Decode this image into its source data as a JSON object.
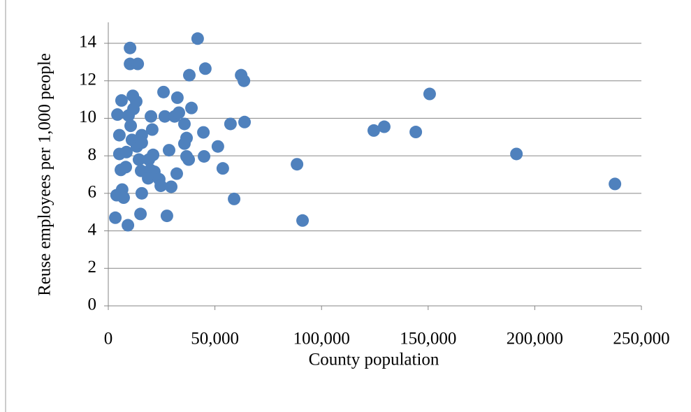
{
  "chart_data": {
    "type": "scatter",
    "x_label": "County population",
    "y_label": "Reuse employees per 1,000 people",
    "color": "#4f81bd",
    "grid": true,
    "xlim": [
      0,
      250000
    ],
    "xticks": [
      0,
      {
        "value": 50000,
        "label": "50,000"
      },
      {
        "value": 100000,
        "label": "100,000"
      },
      {
        "value": 150000,
        "label": "150,000"
      },
      {
        "value": 200000,
        "label": "200,000"
      },
      {
        "value": 250000,
        "label": "250,000"
      }
    ],
    "ylim": [
      0,
      14
    ],
    "yticks": [
      0,
      2,
      4,
      6,
      8,
      10,
      12,
      14
    ],
    "x": [
      3300,
      3900,
      4300,
      5200,
      5200,
      6200,
      6500,
      5900,
      7200,
      8200,
      8500,
      9200,
      10200,
      10200,
      13800,
      9500,
      10500,
      11500,
      13100,
      11800,
      11100,
      13400,
      14400,
      15700,
      15700,
      15400,
      15100,
      15700,
      19000,
      20000,
      20600,
      21000,
      19700,
      21600,
      18700,
      23900,
      24600,
      25900,
      26500,
      27500,
      28500,
      29500,
      31100,
      32400,
      33100,
      32100,
      35700,
      35700,
      36700,
      36700,
      37700,
      38000,
      39000,
      41900,
      44600,
      44900,
      45500,
      51400,
      53700,
      57300,
      59000,
      62300,
      63600,
      63900,
      88500,
      91100,
      124500,
      129400,
      144200,
      150700,
      191400,
      237600
    ],
    "values": [
      4.7,
      5.9,
      10.2,
      9.1,
      8.1,
      10.95,
      6.2,
      7.25,
      5.77,
      7.4,
      8.2,
      4.3,
      13.75,
      12.9,
      12.9,
      10.15,
      9.6,
      11.2,
      10.9,
      10.5,
      8.85,
      8.5,
      7.8,
      9.1,
      8.7,
      7.2,
      4.9,
      6.0,
      7.8,
      10.1,
      9.4,
      8.05,
      7.25,
      7.15,
      6.8,
      6.75,
      6.4,
      11.4,
      10.1,
      4.8,
      8.3,
      6.35,
      10.1,
      11.1,
      10.3,
      7.05,
      9.7,
      8.65,
      8.95,
      7.97,
      7.8,
      12.3,
      10.55,
      14.25,
      9.25,
      7.97,
      12.65,
      8.5,
      7.33,
      9.7,
      5.7,
      12.3,
      12.0,
      9.8,
      7.55,
      4.55,
      9.35,
      9.55,
      9.27,
      11.3,
      8.1,
      6.5
    ]
  }
}
